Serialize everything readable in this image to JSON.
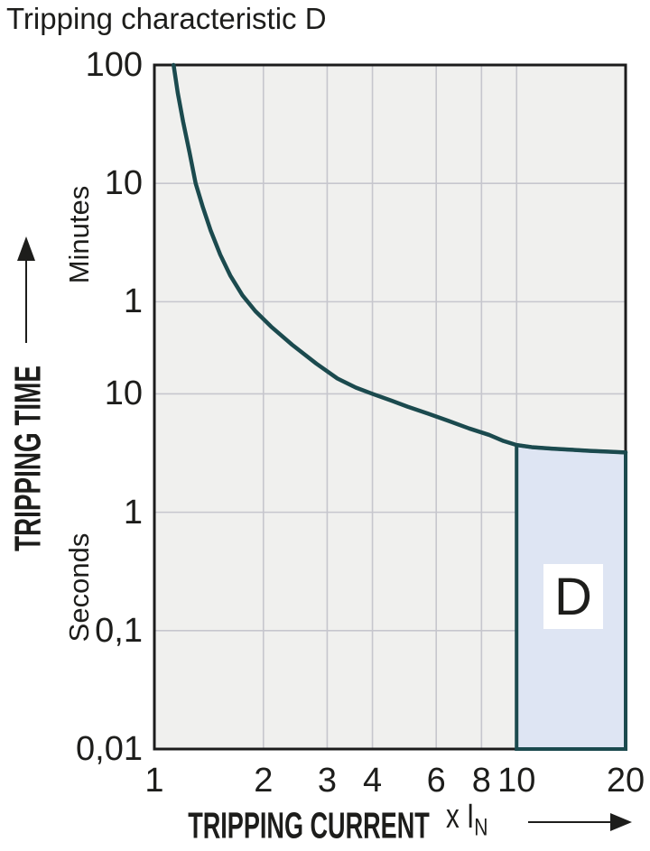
{
  "title": "Tripping characteristic D",
  "y_axis": {
    "axis_label": "TRIPPING TIME",
    "unit_minutes": "Minutes",
    "unit_seconds": "Seconds",
    "ticks": [
      {
        "label": "100",
        "seconds": 6000
      },
      {
        "label": "10",
        "seconds": 600
      },
      {
        "label": "1",
        "seconds": 60
      },
      {
        "label": "10",
        "seconds": 10
      },
      {
        "label": "1",
        "seconds": 1
      },
      {
        "label": "0,1",
        "seconds": 0.1
      },
      {
        "label": "0,01",
        "seconds": 0.01
      }
    ]
  },
  "x_axis": {
    "axis_label": "TRIPPING CURRENT",
    "multiplier_prefix": "x I",
    "multiplier_sub": "N",
    "ticks": [
      {
        "label": "1",
        "value": 1
      },
      {
        "label": "2",
        "value": 2
      },
      {
        "label": "3",
        "value": 3
      },
      {
        "label": "4",
        "value": 4
      },
      {
        "label": "6",
        "value": 6
      },
      {
        "label": "8",
        "value": 8
      },
      {
        "label": "10",
        "value": 10
      },
      {
        "label": "20",
        "value": 20
      }
    ]
  },
  "region": {
    "label": "D"
  },
  "icons": {
    "y_axis_arrow": "up-arrow-icon",
    "x_axis_arrow": "right-arrow-icon"
  },
  "colors": {
    "curve": "#1b4a4e",
    "region_fill": "#dee5f3",
    "region_border": "#1b4a4e",
    "plot_background": "#f0f0ee",
    "gridline": "#c6c6cd",
    "frame": "#1c1c1c",
    "text": "#1d1d1b",
    "page_background": "#ffffff"
  },
  "chart_data": {
    "type": "line",
    "title": "Tripping characteristic D",
    "xlabel": "TRIPPING CURRENT x IN",
    "ylabel": "TRIPPING TIME (Minutes / Seconds)",
    "x_scale": "log",
    "y_scale": "log",
    "xlim": [
      1,
      20
    ],
    "ylim_seconds": [
      0.01,
      6000
    ],
    "x_gridlines": [
      2,
      3,
      4,
      6,
      8,
      10
    ],
    "y_gridlines_seconds": [
      600,
      60,
      10,
      1,
      0.1
    ],
    "series": [
      {
        "name": "D characteristic tripping curve",
        "points_x_times_In_vs_seconds": [
          [
            1.13,
            6000
          ],
          [
            1.16,
            3500
          ],
          [
            1.2,
            2000
          ],
          [
            1.25,
            1100
          ],
          [
            1.3,
            600
          ],
          [
            1.36,
            380
          ],
          [
            1.43,
            240
          ],
          [
            1.52,
            150
          ],
          [
            1.62,
            100
          ],
          [
            1.75,
            68
          ],
          [
            1.9,
            50
          ],
          [
            2.1,
            37
          ],
          [
            2.4,
            26
          ],
          [
            2.8,
            18
          ],
          [
            3.2,
            13.5
          ],
          [
            3.6,
            11.3
          ],
          [
            4,
            10
          ],
          [
            4.5,
            8.8
          ],
          [
            5,
            7.8
          ],
          [
            5.7,
            6.8
          ],
          [
            6.5,
            5.9
          ],
          [
            7.4,
            5.1
          ],
          [
            8.4,
            4.5
          ],
          [
            9.2,
            4.0
          ],
          [
            10,
            3.7
          ],
          [
            11,
            3.55
          ],
          [
            12.5,
            3.45
          ],
          [
            14,
            3.38
          ],
          [
            16,
            3.3
          ],
          [
            18,
            3.25
          ],
          [
            20,
            3.2
          ]
        ]
      }
    ],
    "region": {
      "label": "D",
      "x_range": [
        10,
        20
      ],
      "bottom_seconds": 0.01,
      "top_follows_curve": true
    }
  }
}
